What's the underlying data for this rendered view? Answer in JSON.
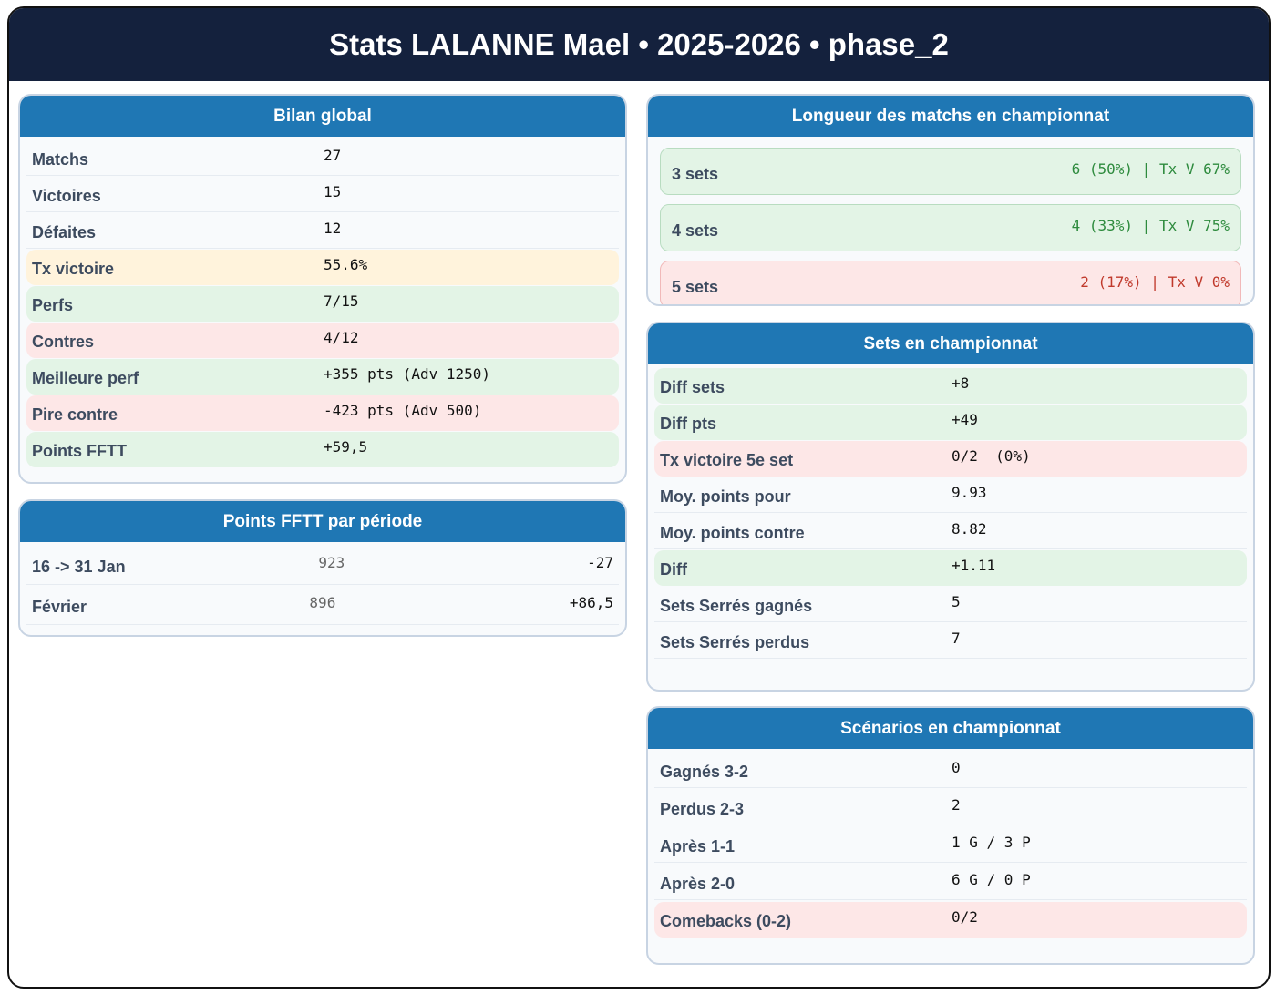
{
  "header": {
    "title": "Stats LALANNE Mael • 2025-2026 • phase_2"
  },
  "bilan_global": {
    "title": "Bilan global",
    "rows": [
      [
        "Matchs",
        "27"
      ],
      [
        "Victoires",
        "15"
      ],
      [
        "Défaites",
        "12"
      ],
      [
        "Tx victoire",
        "55.6%"
      ],
      [
        "Perfs",
        "7/15"
      ],
      [
        "Contres",
        "4/12"
      ],
      [
        "Meilleure perf",
        "+355 pts (Adv 1250)"
      ],
      [
        "Pire contre",
        "-423 pts (Adv 500)"
      ],
      [
        "Points FFTT",
        "+59,5"
      ]
    ]
  },
  "points_par_periode": {
    "title": "Points FFTT par période",
    "rows": [
      [
        "16 -> 31 Jan",
        "923",
        "-27"
      ],
      [
        "Février",
        "896",
        "+86,5"
      ]
    ]
  },
  "longueur_matchs": {
    "title": "Longueur des matchs en championnat",
    "rows": [
      [
        "3 sets",
        "6 (50%) | Tx V 67%"
      ],
      [
        "4 sets",
        "4 (33%) | Tx V 75%"
      ],
      [
        "5 sets",
        "2 (17%) | Tx V 0%"
      ]
    ]
  },
  "sets": {
    "title": "Sets en championnat",
    "rows": [
      [
        "Diff sets",
        "+8"
      ],
      [
        "Diff pts",
        "+49"
      ],
      [
        "Tx victoire 5e set",
        "0/2  (0%)"
      ],
      [
        "Moy. points pour",
        "9.93"
      ],
      [
        "Moy. points contre",
        "8.82"
      ],
      [
        "Diff",
        "+1.11"
      ],
      [
        "Sets Serrés gagnés",
        "5"
      ],
      [
        "Sets Serrés perdus",
        "7"
      ]
    ]
  },
  "scenarios": {
    "title": "Scénarios en championnat",
    "rows": [
      [
        "Gagnés 3-2",
        "0"
      ],
      [
        "Perdus 2-3",
        "2"
      ],
      [
        "Après 1-1",
        "1 G / 3 P"
      ],
      [
        "Après 2-0",
        "6 G / 0 P"
      ],
      [
        "Comebacks (0-2)",
        "0/2"
      ]
    ]
  }
}
